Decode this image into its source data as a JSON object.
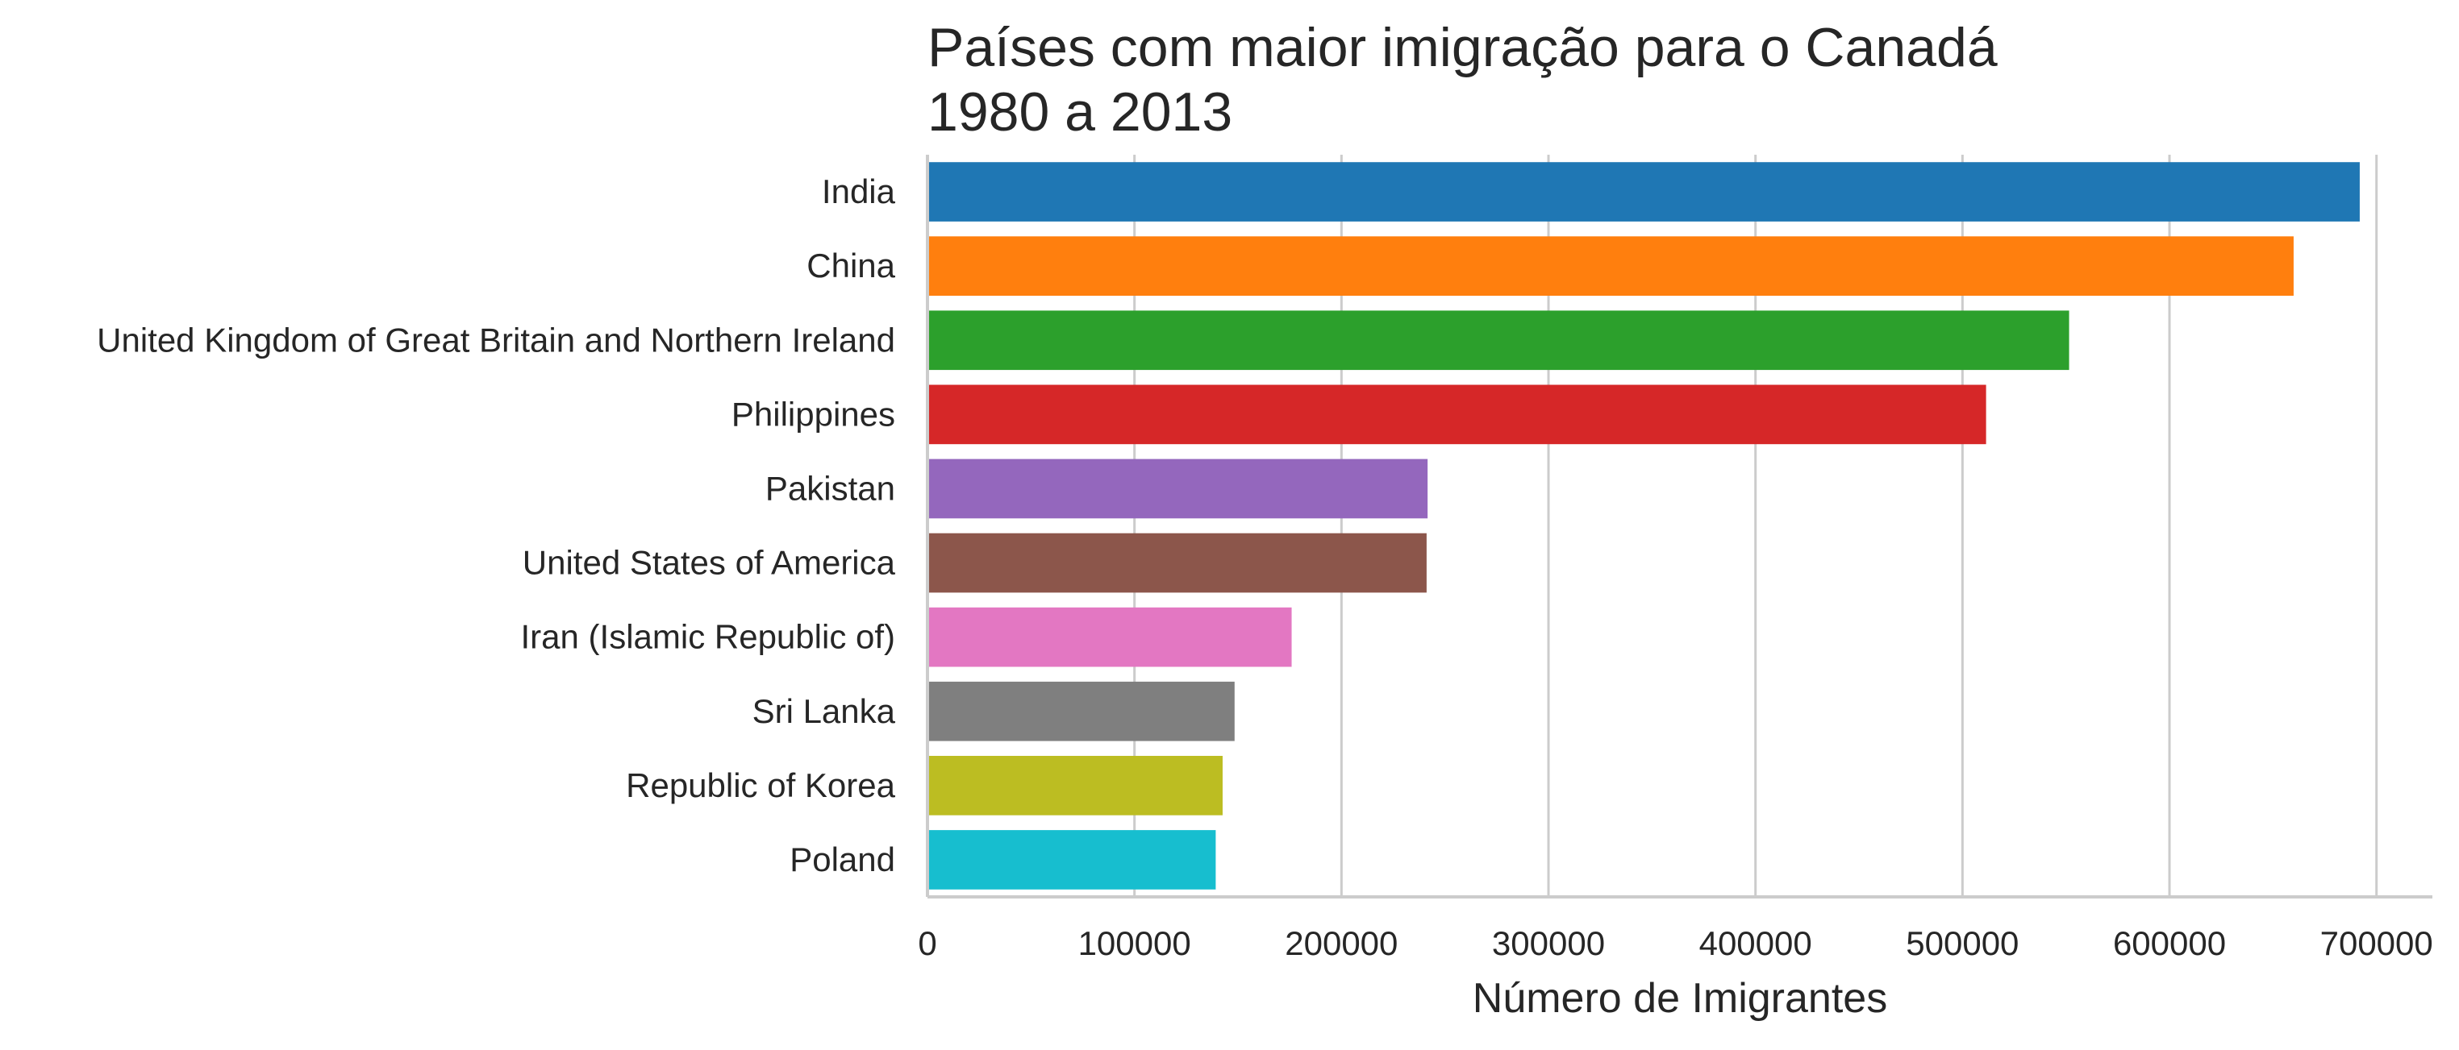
{
  "chart_data": {
    "type": "bar",
    "orientation": "horizontal",
    "title": "Países com maior imigração para o Canadá\n1980 a 2013",
    "xlabel": "Número de Imigrantes",
    "ylabel": "",
    "categories": [
      "India",
      "China",
      "United Kingdom of Great Britain and Northern Ireland",
      "Philippines",
      "Pakistan",
      "United States of America",
      "Iran (Islamic Republic of)",
      "Sri Lanka",
      "Republic of Korea",
      "Poland"
    ],
    "values": [
      691904,
      659962,
      551500,
      511391,
      241600,
      241122,
      175923,
      148358,
      142581,
      139241
    ],
    "colors": [
      "#1f77b4",
      "#ff7f0e",
      "#2ca02c",
      "#d62728",
      "#9467bd",
      "#8c564b",
      "#e377c2",
      "#7f7f7f",
      "#bcbd22",
      "#17becf"
    ],
    "xlim": [
      0,
      727000
    ],
    "xticks": [
      0,
      100000,
      200000,
      300000,
      400000,
      500000,
      600000,
      700000
    ],
    "grid": "vertical",
    "legend": "none"
  }
}
